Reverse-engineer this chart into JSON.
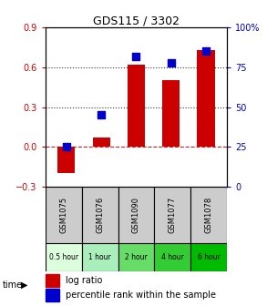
{
  "title": "GDS115 / 3302",
  "samples": [
    "GSM1075",
    "GSM1076",
    "GSM1090",
    "GSM1077",
    "GSM1078"
  ],
  "time_labels": [
    "0.5 hour",
    "1 hour",
    "2 hour",
    "4 hour",
    "6 hour"
  ],
  "time_colors": [
    "#e8ffe8",
    "#bbeeaa",
    "#77dd77",
    "#44cc44",
    "#00aa00"
  ],
  "log_ratio": [
    -0.2,
    0.07,
    0.62,
    0.5,
    0.73
  ],
  "percentile": [
    25,
    45,
    82,
    78,
    85
  ],
  "bar_color": "#cc0000",
  "dot_color": "#0000cc",
  "ylim_left": [
    -0.3,
    0.9
  ],
  "ylim_right": [
    0,
    100
  ],
  "yticks_left": [
    -0.3,
    0.0,
    0.3,
    0.6,
    0.9
  ],
  "yticks_right": [
    0,
    25,
    50,
    75,
    100
  ],
  "hlines": [
    0.0,
    0.3,
    0.6
  ],
  "hline_styles": [
    "--",
    ":",
    ":"
  ],
  "hline_colors": [
    "#cc2222",
    "#333333",
    "#333333"
  ],
  "bar_width": 0.5,
  "dot_size": 28,
  "legend_bar_label": "log ratio",
  "legend_dot_label": "percentile rank within the sample",
  "left_tick_color": "#cc0000",
  "right_tick_color": "#0000cc",
  "sample_bg_color": "#cccccc",
  "fig_bg_color": "#ffffff"
}
